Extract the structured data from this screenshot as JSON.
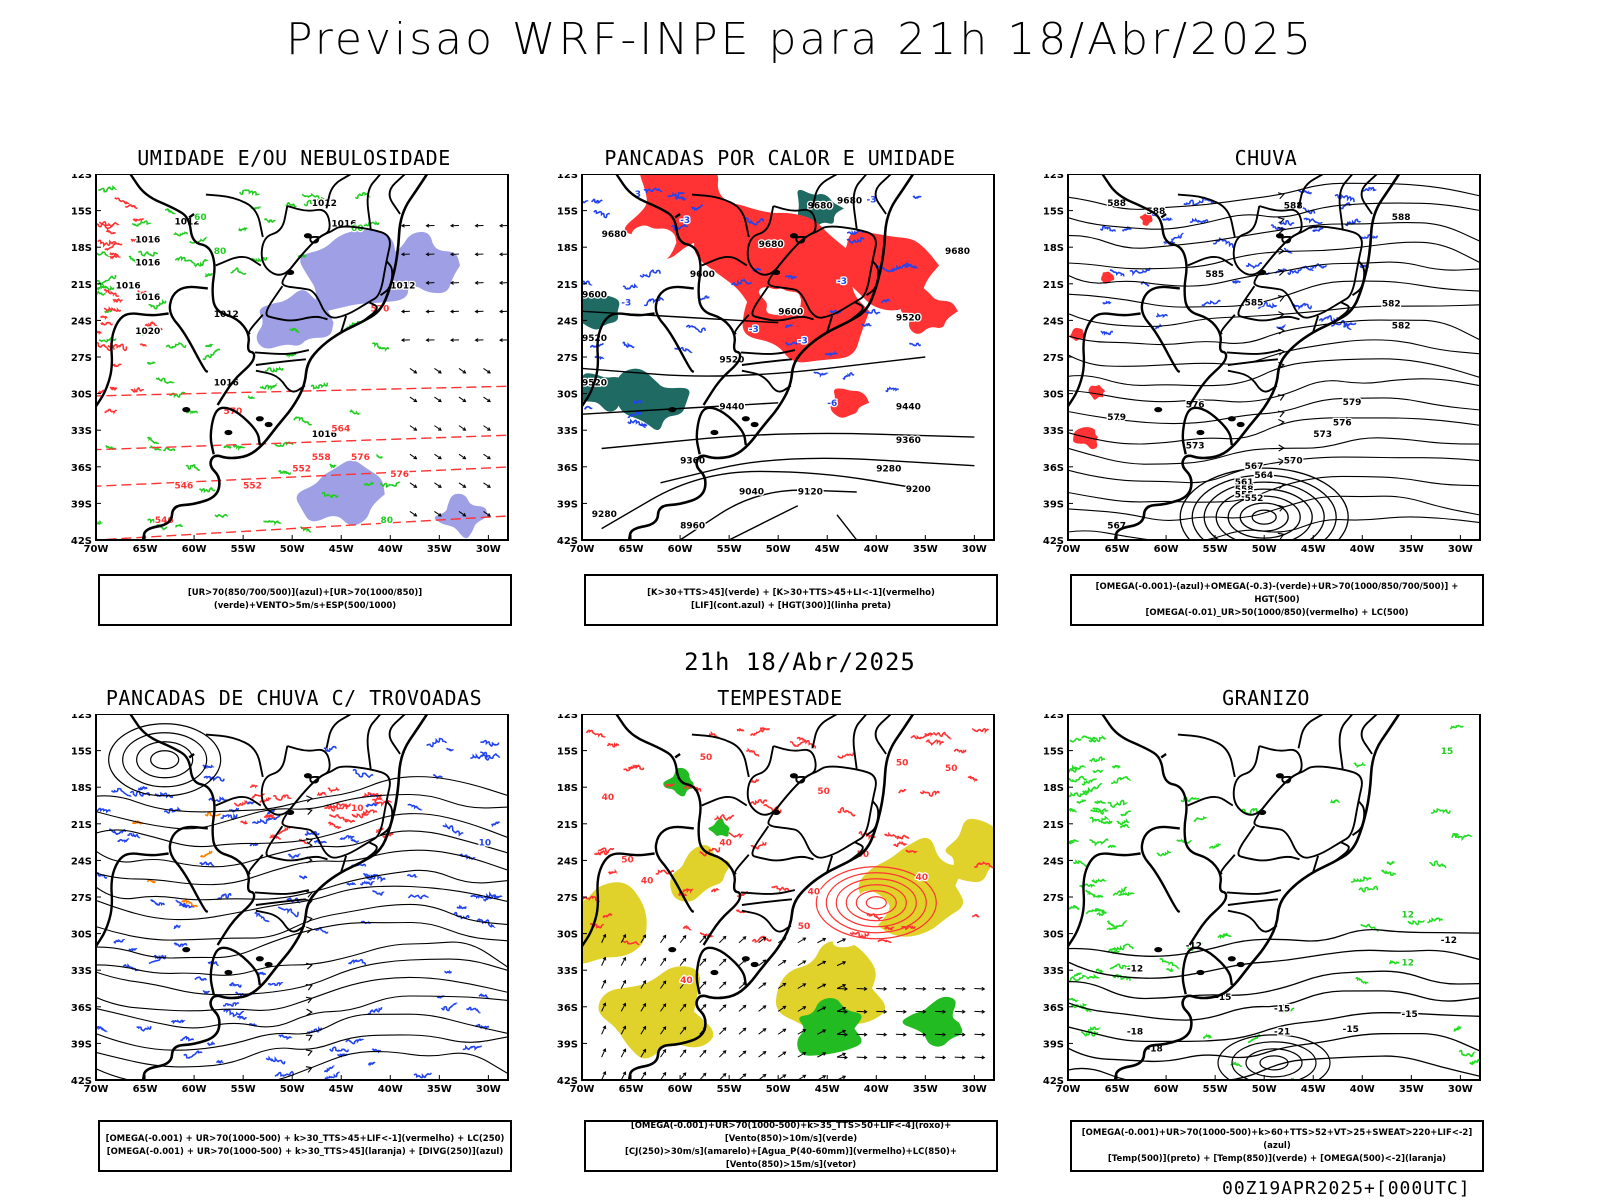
{
  "title": "Previsao WRF-INPE  para 21h 18/Abr/2025",
  "mid_time": "21h 18/Abr/2025",
  "footer": "00Z19APR2025+[000UTC]",
  "axes": {
    "y_ticks": [
      "12S",
      "15S",
      "18S",
      "21S",
      "24S",
      "27S",
      "30S",
      "33S",
      "36S",
      "39S",
      "42S"
    ],
    "x_ticks": [
      "70W",
      "65W",
      "60W",
      "55W",
      "50W",
      "45W",
      "40W",
      "35W",
      "30W"
    ]
  },
  "colors": {
    "black": "#000000",
    "red": "#ff3333",
    "green": "#22cc22",
    "blue": "#2244ee",
    "lavender": "#9f9fe6",
    "darkteal": "#1f6b64",
    "yellow": "#e0d22a",
    "orange": "#ff8000"
  },
  "panels": [
    {
      "id": "umidade",
      "title": "UMIDADE E/OU NEBULOSIDADE",
      "legend": [
        "[UR>70(850/700/500)](azul)+[UR>70(1000/850)](verde)+VENTO>5m/s+ESP(500/1000)"
      ],
      "labels": [
        "1012",
        "1016",
        "1012",
        "1016",
        "1016",
        "1012",
        "1016",
        "1016",
        "1020",
        "1012",
        "1016",
        "1016",
        "570",
        "576",
        "576",
        "570",
        "564",
        "558",
        "552",
        "552",
        "546",
        "546",
        "60",
        "80",
        "60",
        "80"
      ]
    },
    {
      "id": "pancadas-calor",
      "title": "PANCADAS POR CALOR E UMIDADE",
      "legend": [
        "[K>30+TTS>45](verde) + [K>30+TTS>45+LI<-1](vermelho)",
        "[LIF](cont.azul) + [HGT(300)](linha preta)"
      ],
      "labels": [
        "9680",
        "9680",
        "9680",
        "9680",
        "9680",
        "9600",
        "9600",
        "9600",
        "9520",
        "9520",
        "9520",
        "9520",
        "9440",
        "9440",
        "9440",
        "9360",
        "9360",
        "9280",
        "9280",
        "9200",
        "9120",
        "9040",
        "8960",
        "-3",
        "-3",
        "-3",
        "-3",
        "-3",
        "-3",
        "-3",
        "-6"
      ]
    },
    {
      "id": "chuva",
      "title": "CHUVA",
      "legend": [
        "[OMEGA(-0.001)-(azul)+OMEGA(-0.3)-(verde)+UR>70(1000/850/700/500)] + HGT(500)",
        "[OMEGA(-0.01)_UR>50(1000/850)(vermelho) + LC(500)"
      ],
      "labels": [
        "588",
        "588",
        "588",
        "585",
        "585",
        "582",
        "582",
        "579",
        "579",
        "576",
        "576",
        "573",
        "573",
        "570",
        "567",
        "564",
        "561",
        "558",
        "555",
        "552",
        "588",
        "567"
      ]
    },
    {
      "id": "trovoadas",
      "title": "PANCADAS DE CHUVA C/ TROVOADAS",
      "legend": [
        "[OMEGA(-0.001) + UR>70(1000-500) + k>30_TTS>45+LIF<-1](vermelho) + LC(250)",
        "[OMEGA(-0.001) + UR>70(1000-500) + k>30_TTS>45](laranja) + [DIVG(250)](azul)"
      ],
      "labels": [
        "10",
        "10"
      ]
    },
    {
      "id": "tempestade",
      "title": "TEMPESTADE",
      "legend": [
        "[OMEGA(-0.001)+UR>70(1000-500)+k>35_TTS>50+LIF<-4](roxo)+[Vento(850)>10m/s](verde)",
        "[CJ(250)>30m/s](amarelo)+[Agua_P(40-60mm)](vermelho)+LC(850)+[Vento(850)>15m/s](vetor)"
      ],
      "labels": [
        "50",
        "50",
        "40",
        "40",
        "50",
        "50",
        "40",
        "40",
        "40",
        "50",
        "40",
        "50",
        "50"
      ]
    },
    {
      "id": "granizo",
      "title": "GRANIZO",
      "legend": [
        "[OMEGA(-0.001)+UR>70(1000-500)+k>60+TTS>52+VT>25+SWEAT>220+LIF<-2](azul)",
        "[Temp(500)](preto) + [Temp(850)](verde) + [OMEGA(500)<-2](laranja)"
      ],
      "labels": [
        "15",
        "12",
        "12",
        "-12",
        "-12",
        "-15",
        "-15",
        "-15",
        "-18",
        "-18",
        "-21",
        "-12",
        "-15"
      ]
    }
  ]
}
